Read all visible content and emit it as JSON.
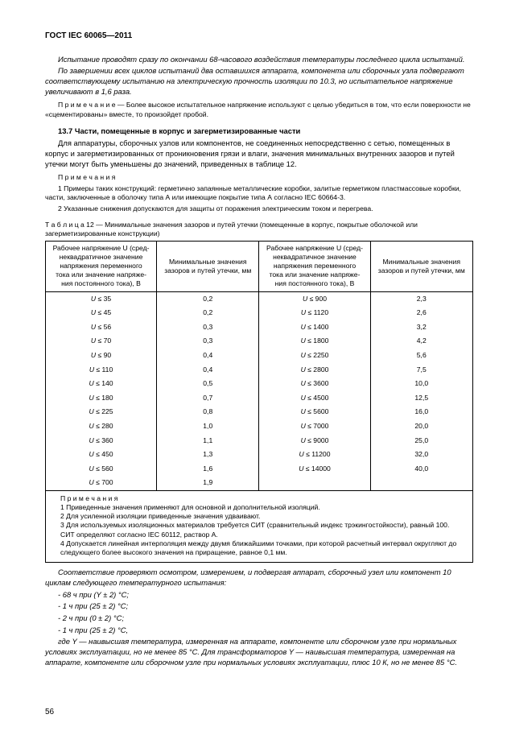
{
  "header": "ГОСТ IEC 60065—2011",
  "p1": "Испытание проводят сразу по окончании 68-часового воздействия температуры последнего цикла испытаний.",
  "p2": "По завершении всех циклов испытаний два оставшихся аппарата, компонента или сборочных узла подвергают соответствующему испытанию на электрическую прочность изоляции по 10.3, но испытательное напряжение увеличивают в 1,6 раза.",
  "note1_label": "П р и м е ч а н и е",
  "note1_text": " — Более высокое испытательное напряжение используют с целью убедиться в том, что если поверхности не «сцементированы» вместе, то произойдет пробой.",
  "section_title": "13.7 Части, помещенные в корпус и загерметизированные части",
  "p3": "Для аппаратуры, сборочных узлов или компонентов, не соединенных непосредственно с сетью, помещенных в корпус и загерметизированных от проникновения грязи и влаги, значения минимальных внутренних зазоров и путей утечки могут быть уменьшены до значений, приведенных в таблице 12.",
  "notes2_label": "П р и м е ч а н и я",
  "notes2a": "1 Примеры таких конструкций: герметично запаянные металлические коробки, залитые герметиком пластмассовые коробки, части, заключенные в оболочку типа А или имеющие покрытие типа А согласно IEC 60664-3.",
  "notes2b": "2 Указанные снижения допускаются для защиты от поражения электрическим током и перегрева.",
  "table_caption": "Т а б л и ц а   12 — Минимальные значения зазоров и путей утечки (помещенные в корпус, покрытые оболочкой или загерметизированные конструкции)",
  "col_u_long": "Рабочее напряжение U (средneквадратичное значение напряжения переменного тока или значение напряжения постоянного тока), В",
  "col_u_a": "Рабочее напряжение U (сред-",
  "col_u_b": "неквадратичное значение",
  "col_u_c": "напряжения переменного",
  "col_u_d": "тока или значение напряже-",
  "col_u_e": "ния постоянного тока), В",
  "col_min": "Минимальные значения зазоров и путей утечки, мм",
  "rows_left": [
    {
      "u": "U ≤ 35",
      "v": "0,2"
    },
    {
      "u": "U ≤ 45",
      "v": "0,2"
    },
    {
      "u": "U ≤ 56",
      "v": "0,3"
    },
    {
      "u": "U ≤ 70",
      "v": "0,3"
    },
    {
      "u": "U ≤ 90",
      "v": "0,4"
    },
    {
      "u": "U ≤ 110",
      "v": "0,4"
    },
    {
      "u": "U ≤ 140",
      "v": "0,5"
    },
    {
      "u": "U ≤ 180",
      "v": "0,7"
    },
    {
      "u": "U ≤ 225",
      "v": "0,8"
    },
    {
      "u": "U ≤ 280",
      "v": "1,0"
    },
    {
      "u": "U ≤ 360",
      "v": "1,1"
    },
    {
      "u": "U ≤ 450",
      "v": "1,3"
    },
    {
      "u": "U ≤ 560",
      "v": "1,6"
    },
    {
      "u": "U ≤ 700",
      "v": "1,9"
    }
  ],
  "rows_right": [
    {
      "u": "U ≤ 900",
      "v": "2,3"
    },
    {
      "u": "U ≤ 1120",
      "v": "2,6"
    },
    {
      "u": "U ≤ 1400",
      "v": "3,2"
    },
    {
      "u": "U ≤ 1800",
      "v": "4,2"
    },
    {
      "u": "U ≤ 2250",
      "v": "5,6"
    },
    {
      "u": "U ≤ 2800",
      "v": "7,5"
    },
    {
      "u": "U ≤ 3600",
      "v": "10,0"
    },
    {
      "u": "U ≤ 4500",
      "v": "12,5"
    },
    {
      "u": "U ≤ 5600",
      "v": "16,0"
    },
    {
      "u": "U ≤ 7000",
      "v": "20,0"
    },
    {
      "u": "U ≤ 9000",
      "v": "25,0"
    },
    {
      "u": "U ≤ 11200",
      "v": "32,0"
    },
    {
      "u": "U ≤ 14000",
      "v": "40,0"
    },
    {
      "u": "",
      "v": ""
    }
  ],
  "tnotes_label": "П р и м е ч а н и я",
  "tnote1": "1 Приведенные значения применяют для основной и дополнительной изоляций.",
  "tnote2": "2 Для усиленной изоляции приведенные значения удваивают.",
  "tnote3": "3 Для используемых изоляционных материалов требуется СИТ (сравнительный индекс трэкингостойкости), равный 100. СИТ определяют согласно IEC 60112, раствор А.",
  "tnote4": "4 Допускается линейная интерполяция между двумя ближайшими точками, при которой расчетный интервал округляют до следующего более высокого значения на приращение, равное 0,1 мм.",
  "p4": "Соответствие проверяют осмотром, измерением, и подвергая аппарат, сборочный узел или компонент 10 циклам следующего температурного испытания:",
  "li1": "- 68 ч при (Y ± 2) °C;",
  "li2": "- 1 ч при (25 ± 2) °C;",
  "li3": "- 2 ч при (0 ± 2) °C;",
  "li4": "- 1 ч при (25 ± 2) °C,",
  "p5": "где Y — наивысшая температура, измеренная на аппарате, компоненте или сборочном узле при нормальных условиях эксплуатации, но не менее 85 °C. Для трансформаторов Y — наивысшая температура, измеренная на аппарате, компоненте или сборочном узле при нормальных условиях эксплуатации, плюс 10 К, но не менее 85 °C.",
  "page": "56"
}
